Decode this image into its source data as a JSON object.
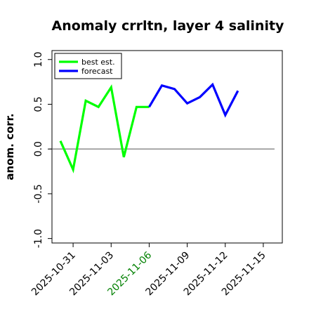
{
  "chart_data": {
    "type": "line",
    "title": "Anomaly crrltn, layer 4 salinity",
    "xlabel": "",
    "ylabel": "anom. corr.",
    "ylim": [
      -1.05,
      1.1
    ],
    "yticks": [
      -1.0,
      -0.5,
      0.0,
      0.5,
      1.0
    ],
    "ytick_labels": [
      "-1.0",
      "-0.5",
      "0.0",
      "0.5",
      "1.0"
    ],
    "xlim": [
      "2025-10-29T08:00",
      "2025-11-16T12:00"
    ],
    "xticks": [
      "2025-10-31",
      "2025-11-03",
      "2025-11-06",
      "2025-11-09",
      "2025-11-12",
      "2025-11-15"
    ],
    "xtick_colors": [
      "#000000",
      "#000000",
      "#008000",
      "#000000",
      "#000000",
      "#000000"
    ],
    "reference_line": 0.0,
    "grid": false,
    "legend_position": "top-left",
    "series": [
      {
        "name": "best est.",
        "color": "#00ff00",
        "x": [
          "2025-10-30",
          "2025-10-31",
          "2025-11-01",
          "2025-11-02",
          "2025-11-03",
          "2025-11-04",
          "2025-11-05",
          "2025-11-06"
        ],
        "y": [
          0.09,
          -0.23,
          0.54,
          0.47,
          0.69,
          -0.09,
          0.47,
          0.47
        ]
      },
      {
        "name": "forecast",
        "color": "#0000ff",
        "x": [
          "2025-11-06",
          "2025-11-07",
          "2025-11-08",
          "2025-11-09",
          "2025-11-10",
          "2025-11-11",
          "2025-11-12",
          "2025-11-13"
        ],
        "y": [
          0.47,
          0.71,
          0.67,
          0.51,
          0.58,
          0.72,
          0.38,
          0.65
        ]
      }
    ]
  }
}
